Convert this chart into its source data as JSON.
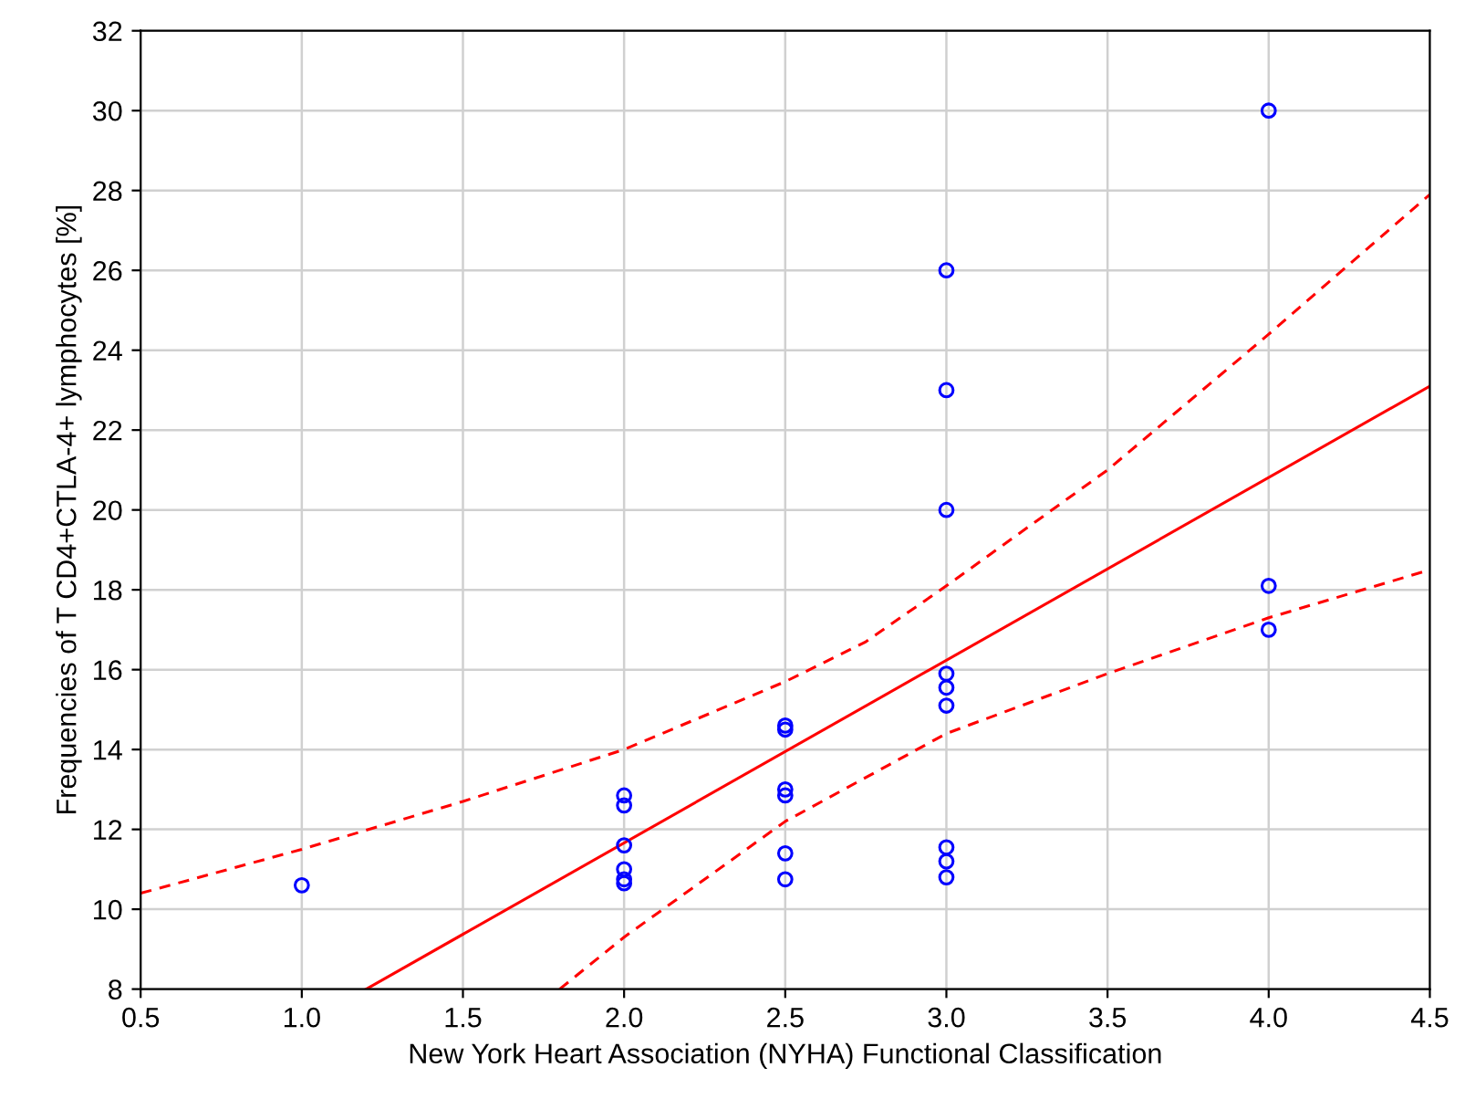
{
  "chart_data": {
    "type": "scatter",
    "xlabel": "New York Heart Association (NYHA) Functional Classification",
    "ylabel": "Frequencies of T CD4+CTLA-4+ lymphocytes [%]",
    "xlim": [
      0.5,
      4.5
    ],
    "ylim": [
      8,
      32
    ],
    "xticks": [
      0.5,
      {
        "value": 1,
        "label": "1.0"
      },
      1.5,
      {
        "value": 2,
        "label": "2.0"
      },
      2.5,
      {
        "value": 3,
        "label": "3.0"
      },
      3.5,
      {
        "value": 4,
        "label": "4.0"
      },
      4.5
    ],
    "yticks": [
      8,
      10,
      12,
      14,
      16,
      18,
      20,
      22,
      24,
      26,
      28,
      30,
      32
    ],
    "grid": true,
    "series": [
      {
        "marker": "circle",
        "color": "#0000ff",
        "x": [
          1,
          2,
          2,
          2,
          2,
          2,
          2,
          2.5,
          2.5,
          2.5,
          2.5,
          2.5,
          2.5,
          3,
          3,
          3,
          3,
          3,
          3,
          3,
          3,
          3,
          4,
          4,
          4
        ],
        "values": [
          10.6,
          12.85,
          12.6,
          11.6,
          11.0,
          10.75,
          10.65,
          14.6,
          14.5,
          13.0,
          12.85,
          11.4,
          10.75,
          26.0,
          23.0,
          20.0,
          15.9,
          15.55,
          15.1,
          11.55,
          11.2,
          10.8,
          30.0,
          18.1,
          17.0
        ]
      },
      {
        "type": "line",
        "color": "#ff0000",
        "line_style": "solid",
        "x": [
          1.2,
          4.5
        ],
        "values": [
          8,
          23.1
        ]
      },
      {
        "type": "line",
        "color": "#ff0000",
        "line_style": "dashed",
        "x": [
          0.5,
          1.0,
          1.5,
          2.0,
          2.5,
          2.75,
          3.0,
          3.5,
          4.0,
          4.5
        ],
        "values": [
          10.4,
          11.5,
          12.7,
          14.0,
          15.7,
          16.7,
          18.1,
          21.0,
          24.4,
          27.9
        ]
      },
      {
        "type": "line",
        "color": "#ff0000",
        "line_style": "dashed",
        "x": [
          1.8,
          2.0,
          2.5,
          3.0,
          3.5,
          4.0,
          4.5
        ],
        "values": [
          8,
          9.3,
          12.2,
          14.4,
          15.9,
          17.3,
          18.5
        ]
      }
    ]
  }
}
